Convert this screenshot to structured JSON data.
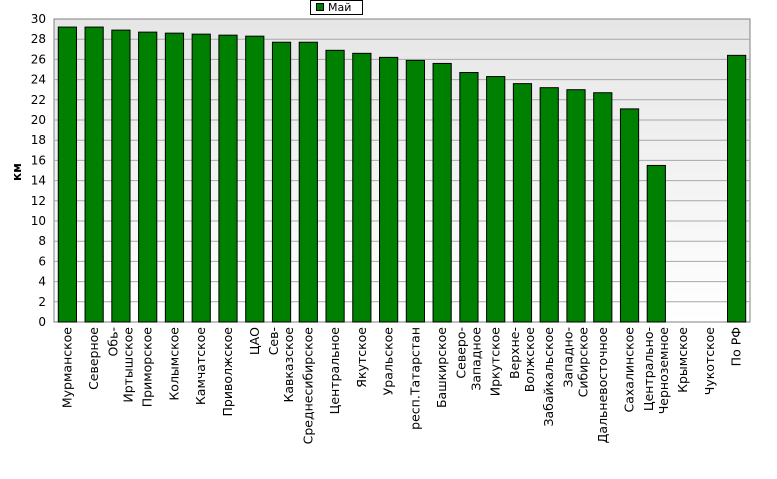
{
  "chart_data": {
    "type": "bar",
    "ylabel": "км",
    "ylim": [
      0,
      30
    ],
    "yticks": [
      0,
      2,
      4,
      6,
      8,
      10,
      12,
      14,
      16,
      18,
      20,
      22,
      24,
      26,
      28,
      30
    ],
    "grid": true,
    "legend_position": "top-center",
    "categories": [
      [
        "Мурманское"
      ],
      [
        "Северное"
      ],
      [
        "Обь-",
        "Иртышское"
      ],
      [
        "Приморское"
      ],
      [
        "Колымское"
      ],
      [
        "Камчатское"
      ],
      [
        "Приволжское"
      ],
      [
        "ЦАО"
      ],
      [
        "Сев-",
        "Кавказское"
      ],
      [
        "Среднесибирское"
      ],
      [
        "Центральное"
      ],
      [
        "Якутское"
      ],
      [
        "Уральское"
      ],
      [
        "респ.Татарстан"
      ],
      [
        "Башкирское"
      ],
      [
        "Северо-",
        "Западное"
      ],
      [
        "Иркутское"
      ],
      [
        "Верхне-",
        "Волжское"
      ],
      [
        "Забайкальское"
      ],
      [
        "Западно-",
        "Сибирское"
      ],
      [
        "Дальневосточное"
      ],
      [
        "Сахалинское"
      ],
      [
        "Центрально-",
        "Черноземное"
      ],
      [
        "Крымское"
      ],
      [
        "Чукотское"
      ],
      [
        "По РФ"
      ]
    ],
    "series": [
      {
        "name": "Май",
        "color": "#008000",
        "values": [
          29.2,
          29.2,
          28.9,
          28.7,
          28.6,
          28.5,
          28.4,
          28.3,
          27.7,
          27.7,
          26.9,
          26.6,
          26.2,
          25.9,
          25.6,
          24.7,
          24.3,
          23.6,
          23.2,
          23.0,
          22.7,
          21.1,
          15.5,
          0,
          0,
          26.4
        ]
      }
    ]
  }
}
